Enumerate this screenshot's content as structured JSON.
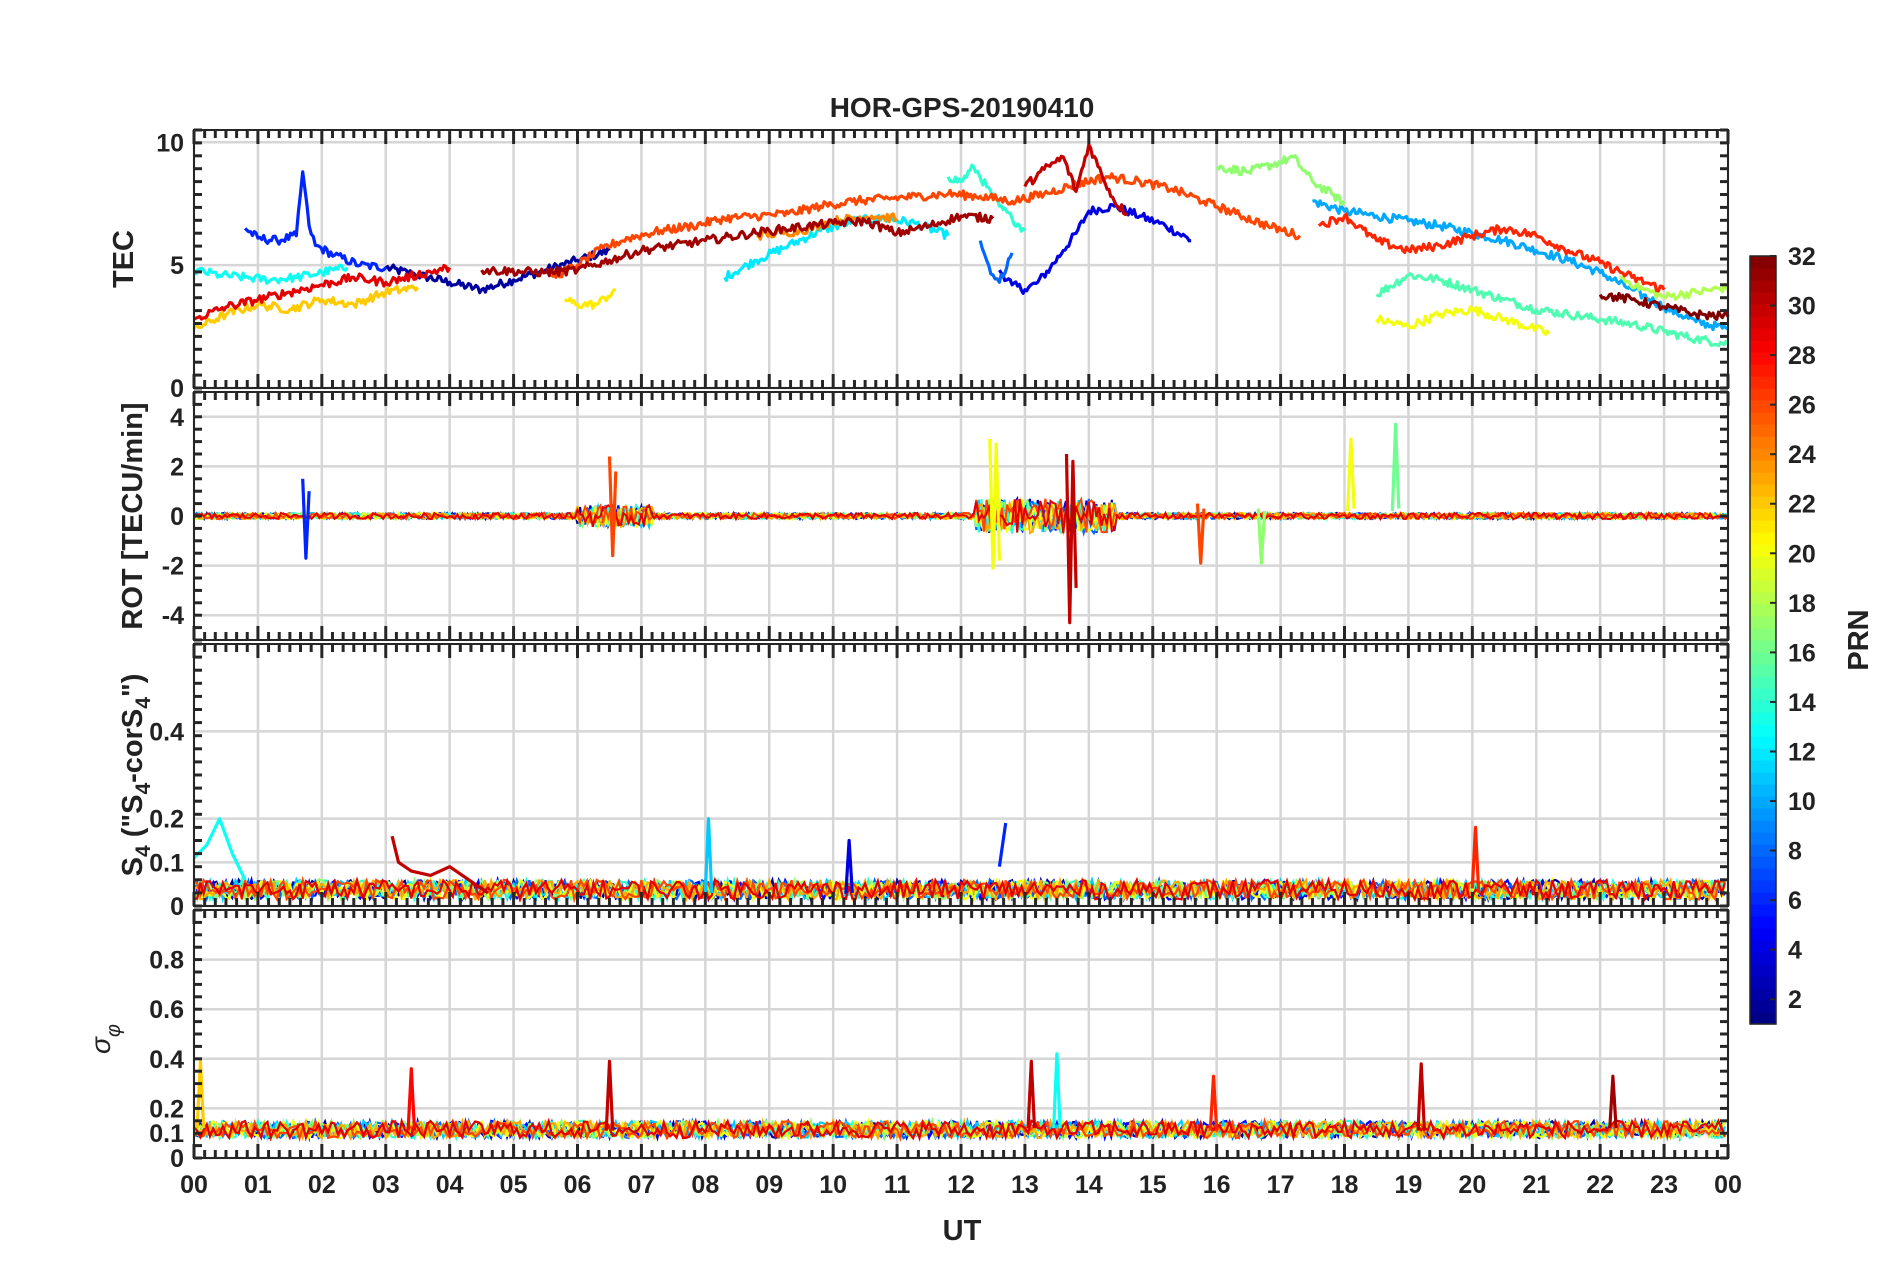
{
  "figure": {
    "title": "HOR-GPS-20190410",
    "xlabel": "UT",
    "colorbar_label": "PRN"
  },
  "chart_data": [
    {
      "type": "line",
      "panel": "TEC",
      "title": "HOR-GPS-20190410",
      "ylabel": "TEC",
      "ylim": [
        0,
        10.5
      ],
      "yticks": [
        0,
        5,
        10
      ],
      "xlim": [
        0,
        24
      ],
      "grid": true,
      "series": [
        {
          "prn": 2,
          "x": [
            3.0,
            3.5,
            4.0,
            4.5,
            5.0,
            5.5,
            6.0,
            6.5
          ],
          "values": [
            4.9,
            4.6,
            4.3,
            4.0,
            4.4,
            4.8,
            5.2,
            5.6
          ]
        },
        {
          "prn": 4,
          "x": [
            12.6,
            12.8,
            13.0,
            13.2,
            13.4,
            13.6,
            13.8,
            14.0,
            14.4,
            14.8,
            15.2,
            15.6
          ],
          "values": [
            4.8,
            4.2,
            4.0,
            4.3,
            4.9,
            5.6,
            6.3,
            7.2,
            7.4,
            7.0,
            6.6,
            6.0
          ]
        },
        {
          "prn": 6,
          "x": [
            0.8,
            1.0,
            1.3,
            1.6,
            1.7,
            1.8,
            1.9,
            2.2,
            2.6,
            3.0
          ],
          "values": [
            6.5,
            6.1,
            6.0,
            6.2,
            8.8,
            6.6,
            5.8,
            5.4,
            5.0,
            4.9
          ]
        },
        {
          "prn": 8,
          "x": [
            12.3,
            12.4,
            12.5,
            12.6,
            12.8
          ],
          "values": [
            6.0,
            5.2,
            4.6,
            4.3,
            5.5
          ]
        },
        {
          "prn": 10,
          "x": [
            17.5,
            18.0,
            18.5,
            19.0,
            19.5,
            20.0,
            20.5,
            21.0,
            21.5,
            22.0,
            22.5,
            23.0,
            23.5,
            24.0
          ],
          "values": [
            7.6,
            7.2,
            7.0,
            6.8,
            6.6,
            6.3,
            6.0,
            5.6,
            5.2,
            4.7,
            4.0,
            3.3,
            2.7,
            2.4
          ]
        },
        {
          "prn": 12,
          "x": [
            8.3,
            8.8,
            9.3,
            9.8,
            10.3,
            10.8,
            11.3,
            11.8
          ],
          "values": [
            4.5,
            5.2,
            5.8,
            6.4,
            6.8,
            6.9,
            6.7,
            6.2
          ]
        },
        {
          "prn": 13,
          "x": [
            0.0,
            0.4,
            0.8,
            1.2,
            1.6,
            2.0,
            2.4
          ],
          "values": [
            4.8,
            4.6,
            4.5,
            4.4,
            4.5,
            4.7,
            4.9
          ]
        },
        {
          "prn": 14,
          "x": [
            11.8,
            12.0,
            12.2,
            12.4,
            12.6,
            12.8,
            13.0
          ],
          "values": [
            8.6,
            8.4,
            9.0,
            8.2,
            7.4,
            6.9,
            6.4
          ]
        },
        {
          "prn": 15,
          "x": [
            18.5,
            19.0,
            19.5,
            20.0,
            20.5,
            21.0,
            21.5,
            22.0,
            22.5,
            23.0,
            23.5,
            24.0
          ],
          "values": [
            3.8,
            4.6,
            4.4,
            4.0,
            3.6,
            3.2,
            3.0,
            2.8,
            2.6,
            2.3,
            2.0,
            1.8
          ]
        },
        {
          "prn": 17,
          "x": [
            16.0,
            16.5,
            17.0,
            17.2,
            17.5,
            17.8,
            18.0
          ],
          "values": [
            9.0,
            8.8,
            9.2,
            9.4,
            8.4,
            7.9,
            7.5
          ]
        },
        {
          "prn": 18,
          "x": [
            22.3,
            22.7,
            23.0,
            23.5,
            24.0
          ],
          "values": [
            4.5,
            4.0,
            3.7,
            3.9,
            4.1
          ]
        },
        {
          "prn": 20,
          "x": [
            18.5,
            19.0,
            19.5,
            20.0,
            20.5,
            21.0,
            21.2
          ],
          "values": [
            2.8,
            2.5,
            3.0,
            3.2,
            2.8,
            2.4,
            2.2
          ]
        },
        {
          "prn": 21,
          "x": [
            5.8,
            6.0,
            6.3,
            6.6
          ],
          "values": [
            3.6,
            3.4,
            3.4,
            4.0
          ]
        },
        {
          "prn": 22,
          "x": [
            0.0,
            0.5,
            1.0,
            1.5,
            2.0,
            2.5,
            3.0,
            3.5
          ],
          "values": [
            2.4,
            3.0,
            3.4,
            3.2,
            3.6,
            3.4,
            3.9,
            4.1
          ]
        },
        {
          "prn": 24,
          "x": [
            8.8,
            9.5,
            10.0,
            10.6,
            11.0
          ],
          "values": [
            6.2,
            6.4,
            6.8,
            7.0,
            6.9
          ]
        },
        {
          "prn": 26,
          "x": [
            5.6,
            6.0,
            6.4,
            6.8,
            7.3,
            7.8,
            8.3,
            8.8,
            9.3,
            9.8,
            10.3,
            10.8,
            11.3,
            11.8,
            12.3,
            12.8,
            13.3,
            13.8,
            14.3,
            14.8,
            15.3,
            15.8,
            16.3,
            16.8,
            17.3
          ],
          "values": [
            4.5,
            5.0,
            5.7,
            6.1,
            6.4,
            6.6,
            6.9,
            7.0,
            7.1,
            7.4,
            7.6,
            7.7,
            7.8,
            7.9,
            7.8,
            7.6,
            7.9,
            8.3,
            8.6,
            8.4,
            8.1,
            7.6,
            7.1,
            6.6,
            6.2
          ]
        },
        {
          "prn": 27,
          "x": [
            17.6,
            18.0,
            18.5,
            19.0,
            19.5,
            20.0,
            20.5,
            21.0,
            21.5,
            22.0,
            22.5,
            23.0
          ],
          "values": [
            6.6,
            7.0,
            6.0,
            5.6,
            5.8,
            6.2,
            6.5,
            6.2,
            5.6,
            5.1,
            4.5,
            4.0
          ]
        },
        {
          "prn": 29,
          "x": [
            0.0,
            0.5,
            1.0,
            1.5,
            2.0,
            2.5,
            3.0,
            3.5,
            4.0
          ],
          "values": [
            2.8,
            3.3,
            3.6,
            3.9,
            4.2,
            4.5,
            4.3,
            4.6,
            4.9
          ]
        },
        {
          "prn": 30,
          "x": [
            13.0,
            13.3,
            13.6,
            13.8,
            14.0,
            14.2,
            14.4,
            14.6
          ],
          "values": [
            8.2,
            8.9,
            9.4,
            8.0,
            9.9,
            8.7,
            7.6,
            7.1
          ]
        },
        {
          "prn": 31,
          "x": [
            4.5,
            5.5,
            6.0,
            6.5,
            7.0,
            8.0,
            9.0,
            10.0,
            10.5,
            11.0,
            11.5,
            12.0,
            12.5
          ],
          "values": [
            4.8,
            4.7,
            4.8,
            5.2,
            5.6,
            6.0,
            6.4,
            6.7,
            6.8,
            6.3,
            6.6,
            7.0,
            6.9
          ]
        },
        {
          "prn": 32,
          "x": [
            22.0,
            22.5,
            23.0,
            23.5,
            24.0
          ],
          "values": [
            3.8,
            3.6,
            3.3,
            3.0,
            2.9
          ]
        }
      ]
    },
    {
      "type": "line",
      "panel": "ROT",
      "ylabel": "ROT [TECU/min]",
      "ylim": [
        -5,
        5
      ],
      "yticks": [
        -4,
        -2,
        0,
        2,
        4
      ],
      "xlim": [
        0,
        24
      ],
      "grid": true,
      "notes_visible": "noise around 0, bursts 06-07 UT and 12-14 UT",
      "series": [
        {
          "prn": 20,
          "x": [
            12.45,
            12.5,
            12.55,
            12.6
          ],
          "values": [
            3.1,
            -2.1,
            2.9,
            -1.8
          ]
        },
        {
          "prn": 30,
          "x": [
            13.65,
            13.7,
            13.75,
            13.8
          ],
          "values": [
            2.5,
            -4.3,
            2.2,
            -2.9
          ]
        },
        {
          "prn": 26,
          "x": [
            6.5,
            6.55,
            6.6
          ],
          "values": [
            2.4,
            -1.6,
            1.8
          ]
        },
        {
          "prn": 6,
          "x": [
            1.7,
            1.75,
            1.8
          ],
          "values": [
            1.5,
            -1.7,
            1.0
          ]
        },
        {
          "prn": 20,
          "x": [
            18.05,
            18.1,
            18.15
          ],
          "values": [
            0.2,
            3.1,
            0.3
          ]
        },
        {
          "prn": 16,
          "x": [
            18.75,
            18.8,
            18.85
          ],
          "values": [
            0.2,
            3.7,
            0.3
          ]
        },
        {
          "prn": 26,
          "x": [
            15.7,
            15.75,
            15.8
          ],
          "values": [
            0.5,
            -1.9,
            0.3
          ]
        },
        {
          "prn": 17,
          "x": [
            16.65,
            16.7,
            16.75
          ],
          "values": [
            0.3,
            -1.9,
            0.2
          ]
        }
      ]
    },
    {
      "type": "line",
      "panel": "S4",
      "ylabel": "S4 (\"S4-corS4\")",
      "ylabel_parts": {
        "main": "S",
        "sub1": "4",
        "open": " (\"S",
        "sub2": "4",
        "mid": "-corS",
        "sub3": "4",
        "close": "\")"
      },
      "ylim": [
        0,
        0.6
      ],
      "yticks": [
        0,
        0.1,
        0.2,
        0.4
      ],
      "xlim": [
        0,
        24
      ],
      "grid": true,
      "series": [
        {
          "prn": 13,
          "x": [
            0.0,
            0.2,
            0.4,
            0.6,
            0.8
          ],
          "values": [
            0.11,
            0.14,
            0.2,
            0.12,
            0.06
          ]
        },
        {
          "prn": 30,
          "x": [
            3.1,
            3.2,
            3.4,
            3.7,
            4.0,
            4.3,
            4.6
          ],
          "values": [
            0.16,
            0.1,
            0.08,
            0.07,
            0.09,
            0.06,
            0.03
          ]
        },
        {
          "prn": 11,
          "x": [
            8.0,
            8.05,
            8.1
          ],
          "values": [
            0.03,
            0.2,
            0.03
          ]
        },
        {
          "prn": 6,
          "x": [
            12.6,
            12.7
          ],
          "values": [
            0.09,
            0.19
          ]
        },
        {
          "prn": 27,
          "x": [
            20.0,
            20.05,
            20.1
          ],
          "values": [
            0.04,
            0.18,
            0.03
          ]
        },
        {
          "prn": 4,
          "x": [
            10.2,
            10.25,
            10.3
          ],
          "values": [
            0.03,
            0.15,
            0.03
          ]
        }
      ]
    },
    {
      "type": "line",
      "panel": "sigma_phi",
      "ylabel": "σ φ",
      "ylim": [
        0,
        1.0
      ],
      "yticks": [
        0,
        0.1,
        0.2,
        0.4,
        0.6,
        0.8
      ],
      "xlim": [
        0,
        24
      ],
      "grid": true,
      "series": [
        {
          "prn": 22,
          "x": [
            0.05,
            0.1,
            0.15
          ],
          "values": [
            0.12,
            0.39,
            0.12
          ]
        },
        {
          "prn": 28,
          "x": [
            3.35,
            3.4,
            3.45
          ],
          "values": [
            0.11,
            0.36,
            0.11
          ]
        },
        {
          "prn": 30,
          "x": [
            6.45,
            6.5,
            6.55
          ],
          "values": [
            0.11,
            0.39,
            0.11
          ]
        },
        {
          "prn": 30,
          "x": [
            13.05,
            13.1,
            13.15
          ],
          "values": [
            0.12,
            0.39,
            0.12
          ]
        },
        {
          "prn": 13,
          "x": [
            13.45,
            13.5,
            13.55
          ],
          "values": [
            0.12,
            0.42,
            0.12
          ]
        },
        {
          "prn": 30,
          "x": [
            19.15,
            19.2,
            19.25
          ],
          "values": [
            0.11,
            0.38,
            0.11
          ]
        },
        {
          "prn": 31,
          "x": [
            22.15,
            22.2,
            22.25
          ],
          "values": [
            0.12,
            0.33,
            0.12
          ]
        },
        {
          "prn": 27,
          "x": [
            15.9,
            15.95,
            16.0
          ],
          "values": [
            0.11,
            0.33,
            0.11
          ]
        }
      ]
    }
  ],
  "x_ticks": [
    "00",
    "01",
    "02",
    "03",
    "04",
    "05",
    "06",
    "07",
    "08",
    "09",
    "10",
    "11",
    "12",
    "13",
    "14",
    "15",
    "16",
    "17",
    "18",
    "19",
    "20",
    "21",
    "22",
    "23",
    "00"
  ],
  "colorbar": {
    "label": "PRN",
    "range": [
      1,
      32
    ],
    "ticks": [
      "2",
      "4",
      "6",
      "8",
      "10",
      "12",
      "14",
      "16",
      "18",
      "20",
      "22",
      "24",
      "26",
      "28",
      "30",
      "32"
    ],
    "tick_values": [
      2,
      4,
      6,
      8,
      10,
      12,
      14,
      16,
      18,
      20,
      22,
      24,
      26,
      28,
      30,
      32
    ],
    "colormap": "jet"
  }
}
